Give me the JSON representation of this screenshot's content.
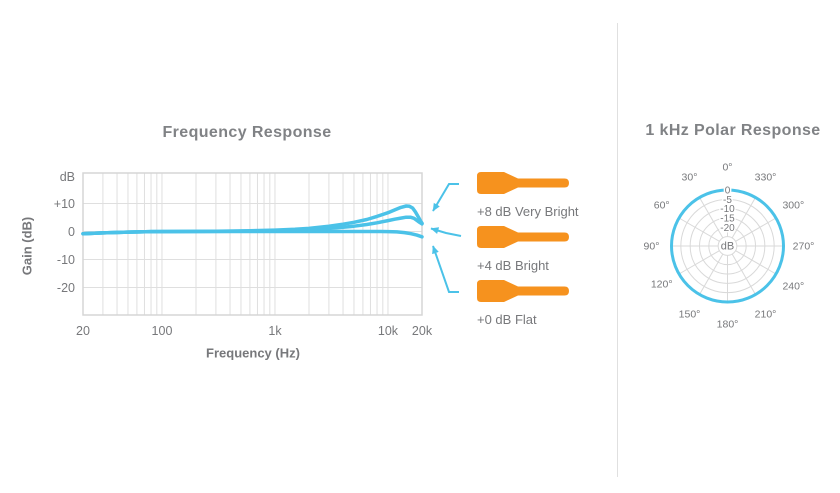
{
  "colors": {
    "accent_cyan": "#4bc2e8",
    "accent_orange": "#f6921e",
    "grid": "#dfdfdf",
    "plot_border": "#d5d5d5",
    "polar_grid": "#d9d9d9",
    "text_gray": "#77787b",
    "title_gray": "#808285",
    "divider": "#e0e0e0"
  },
  "legend": {
    "icon": "shotgun-microphone-icon",
    "items": [
      {
        "label": "+8 dB Very Bright"
      },
      {
        "label": "+4 dB Bright"
      },
      {
        "label": "+0 dB Flat"
      }
    ]
  },
  "chart_data": [
    {
      "type": "line",
      "title": "Frequency Response",
      "xlabel": "Frequency (Hz)",
      "ylabel": "Gain (dB)",
      "x_scale": "log",
      "xlim": [
        20,
        20000
      ],
      "ylim": [
        -30,
        22
      ],
      "grid": true,
      "y_axis_unit": "dB",
      "x_ticks": [
        {
          "value": 20,
          "label": "20"
        },
        {
          "value": 100,
          "label": "100"
        },
        {
          "value": 1000,
          "label": "1k"
        },
        {
          "value": 10000,
          "label": "10k"
        },
        {
          "value": 20000,
          "label": "20k"
        }
      ],
      "y_ticks": [
        {
          "value": 10,
          "label": "+10"
        },
        {
          "value": 0,
          "label": "0"
        },
        {
          "value": -10,
          "label": "-10"
        },
        {
          "value": -20,
          "label": "-20"
        }
      ],
      "series": [
        {
          "name": "+0 dB Flat",
          "points": [
            [
              20,
              -0.8
            ],
            [
              30,
              -0.5
            ],
            [
              50,
              -0.2
            ],
            [
              80,
              -0.05
            ],
            [
              150,
              0
            ],
            [
              1000,
              0
            ],
            [
              5000,
              0
            ],
            [
              8000,
              0
            ],
            [
              10000,
              -0.05
            ],
            [
              12000,
              -0.15
            ],
            [
              14000,
              -0.4
            ],
            [
              16000,
              -0.8
            ],
            [
              18000,
              -1.3
            ],
            [
              20000,
              -1.9
            ]
          ]
        },
        {
          "name": "+4 dB Bright",
          "points": [
            [
              20,
              -0.8
            ],
            [
              30,
              -0.5
            ],
            [
              50,
              -0.2
            ],
            [
              80,
              -0.05
            ],
            [
              150,
              0
            ],
            [
              300,
              0.05
            ],
            [
              600,
              0.15
            ],
            [
              1000,
              0.3
            ],
            [
              1500,
              0.45
            ],
            [
              2000,
              0.65
            ],
            [
              3000,
              1.1
            ],
            [
              4000,
              1.5
            ],
            [
              5000,
              1.9
            ],
            [
              6500,
              2.5
            ],
            [
              8000,
              3.1
            ],
            [
              10000,
              3.9
            ],
            [
              11500,
              4.4
            ],
            [
              13000,
              4.8
            ],
            [
              14500,
              5.1
            ],
            [
              15800,
              5.1
            ],
            [
              17000,
              4.7
            ],
            [
              18000,
              4.0
            ],
            [
              19000,
              3.3
            ],
            [
              20000,
              2.7
            ]
          ]
        },
        {
          "name": "+8 dB Very Bright",
          "points": [
            [
              20,
              -0.8
            ],
            [
              30,
              -0.5
            ],
            [
              50,
              -0.2
            ],
            [
              80,
              -0.05
            ],
            [
              150,
              0
            ],
            [
              300,
              0.1
            ],
            [
              600,
              0.25
            ],
            [
              1000,
              0.5
            ],
            [
              1500,
              0.8
            ],
            [
              2000,
              1.1
            ],
            [
              3000,
              1.9
            ],
            [
              4000,
              2.6
            ],
            [
              5000,
              3.3
            ],
            [
              6500,
              4.3
            ],
            [
              8000,
              5.4
            ],
            [
              10000,
              6.7
            ],
            [
              11500,
              7.7
            ],
            [
              13000,
              8.6
            ],
            [
              14500,
              9.1
            ],
            [
              15500,
              9.0
            ],
            [
              16500,
              8.4
            ],
            [
              17500,
              7.0
            ],
            [
              18500,
              5.3
            ],
            [
              19500,
              3.6
            ],
            [
              20000,
              3.0
            ]
          ]
        }
      ]
    },
    {
      "type": "polar",
      "title": "1 kHz Polar Response",
      "center_label": "dB",
      "rmin_db": -30,
      "rings_db": [
        0,
        -5,
        -10,
        -15,
        -20,
        -25
      ],
      "radial_ticks": [
        {
          "value": 0,
          "label": "0"
        },
        {
          "value": -5,
          "label": "-5"
        },
        {
          "value": -10,
          "label": "-10"
        },
        {
          "value": -15,
          "label": "-15"
        },
        {
          "value": -20,
          "label": "-20"
        }
      ],
      "angle_labels": [
        {
          "deg": 0,
          "label": "0°"
        },
        {
          "deg": 30,
          "label": "30°"
        },
        {
          "deg": 60,
          "label": "60°"
        },
        {
          "deg": 90,
          "label": "90°"
        },
        {
          "deg": 120,
          "label": "120°"
        },
        {
          "deg": 150,
          "label": "150°"
        },
        {
          "deg": 180,
          "label": "180°"
        },
        {
          "deg": 210,
          "label": "210°"
        },
        {
          "deg": 240,
          "label": "240°"
        },
        {
          "deg": 270,
          "label": "270°"
        },
        {
          "deg": 300,
          "label": "300°"
        },
        {
          "deg": 330,
          "label": "330°"
        }
      ],
      "series": [
        {
          "name": "1 kHz",
          "pattern": "omnidirectional",
          "response_db": [
            [
              0,
              0
            ],
            [
              30,
              0
            ],
            [
              60,
              0
            ],
            [
              90,
              0
            ],
            [
              120,
              0
            ],
            [
              150,
              0
            ],
            [
              180,
              0
            ],
            [
              210,
              0
            ],
            [
              240,
              0
            ],
            [
              270,
              0
            ],
            [
              300,
              0
            ],
            [
              330,
              0
            ]
          ]
        }
      ]
    }
  ]
}
